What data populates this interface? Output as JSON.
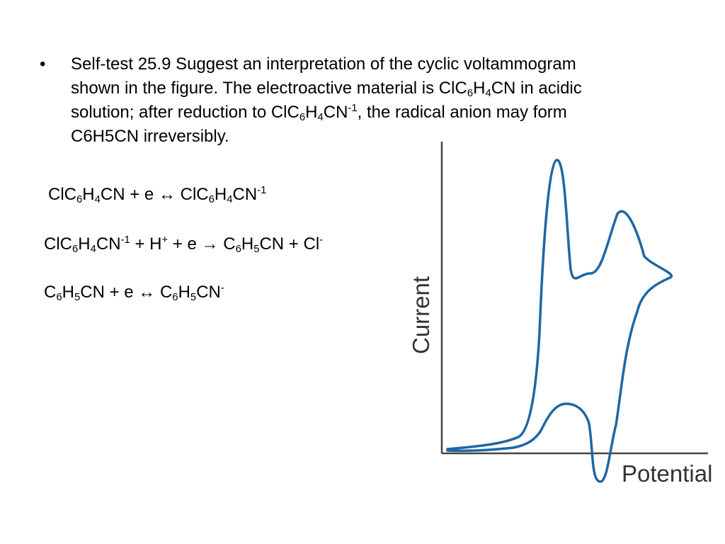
{
  "slide": {
    "bullet_char": "•",
    "self_test": {
      "line1": "Self-test 25.9 Suggest an interpretation of the cyclic voltammogram",
      "line2_a": "shown in the figure. The electroactive material is ClC",
      "line2_sub1": "6",
      "line2_b": "H",
      "line2_sub2": "4",
      "line2_c": "CN in acidic",
      "line3_a": "solution; after reduction to ClC",
      "line3_sub1": "6",
      "line3_b": "H",
      "line3_sub2": "4",
      "line3_c": "CN",
      "line3_sup": "-1",
      "line3_d": ", the radical anion may form",
      "line4": "C6H5CN irreversibly."
    },
    "equations": [
      {
        "parts": [
          {
            "t": "ClC"
          },
          {
            "sub": "6"
          },
          {
            "t": "H"
          },
          {
            "sub": "4"
          },
          {
            "t": "CN + e ↔ ClC"
          },
          {
            "sub": "6"
          },
          {
            "t": "H"
          },
          {
            "sub": "4"
          },
          {
            "t": "CN"
          },
          {
            "sup": "-1"
          }
        ]
      },
      {
        "parts": [
          {
            "t": "ClC"
          },
          {
            "sub": "6"
          },
          {
            "t": "H"
          },
          {
            "sub": "4"
          },
          {
            "t": "CN"
          },
          {
            "sup": "-1"
          },
          {
            "t": " + H"
          },
          {
            "sup": "+"
          },
          {
            "t": " + e → C"
          },
          {
            "sub": "6"
          },
          {
            "t": "H"
          },
          {
            "sub": "5"
          },
          {
            "t": "CN + Cl"
          },
          {
            "sup": "-"
          }
        ]
      },
      {
        "parts": [
          {
            "t": "C"
          },
          {
            "sub": "6"
          },
          {
            "t": "H"
          },
          {
            "sub": "5"
          },
          {
            "t": "CN + e ↔ C"
          },
          {
            "sub": "6"
          },
          {
            "t": "H"
          },
          {
            "sub": "5"
          },
          {
            "t": "CN"
          },
          {
            "sup": "-"
          }
        ]
      }
    ]
  },
  "chart_data": {
    "type": "line",
    "title": "",
    "xlabel": "Potential",
    "ylabel": "Current",
    "grid": false,
    "line_color": "#1f67a3",
    "axis_color": "#444444",
    "axis_ticks": false
  }
}
